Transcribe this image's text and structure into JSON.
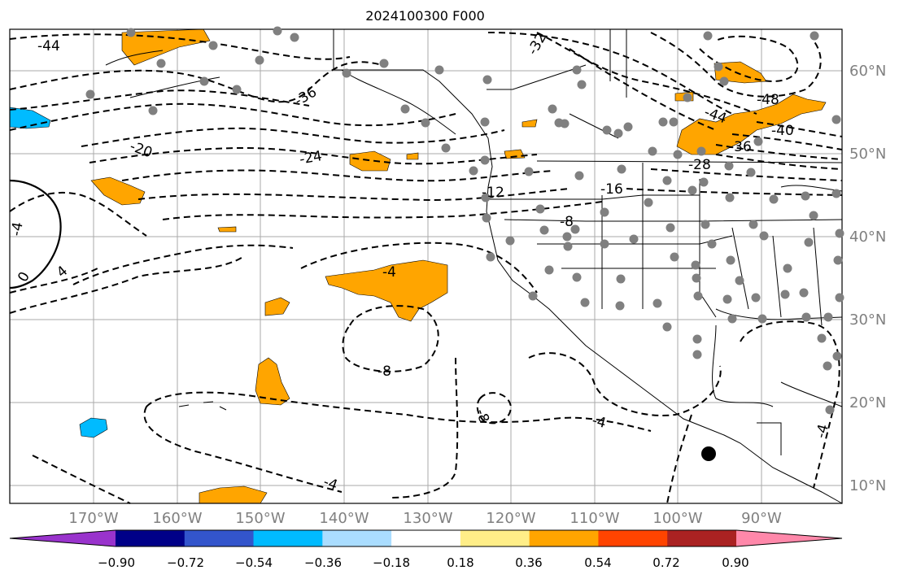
{
  "title": "2024100300 F000",
  "lon_labels": [
    "170°W",
    "160°W",
    "150°W",
    "140°W",
    "130°W",
    "120°W",
    "110°W",
    "100°W",
    "90°W"
  ],
  "lat_labels": [
    "60°N",
    "50°N",
    "40°N",
    "30°N",
    "20°N",
    "10°N"
  ],
  "contour_labels": [
    "-44",
    "-32",
    "-36",
    "-48",
    "-40",
    "-44",
    "-36",
    "-28",
    "-20",
    "-24",
    "-16",
    "-12",
    "-8",
    "0",
    "4",
    "-4",
    "-8",
    "-8",
    "-4",
    "-4",
    "-4",
    "-4"
  ],
  "colorbar": {
    "colors": [
      "#9933cc",
      "#000088",
      "#3355cc",
      "#00bbff",
      "#aaddff",
      "#ffffff",
      "#ffee88",
      "#ffa500",
      "#ff4400",
      "#aa2222",
      "#ff88aa"
    ],
    "ticks": [
      "−0.90",
      "−0.72",
      "−0.54",
      "−0.36",
      "−0.18",
      "0.18",
      "0.36",
      "0.54",
      "0.72",
      "0.90"
    ]
  },
  "colors": {
    "grid": "#aaaaaa",
    "positive_fill": "#ffa500",
    "negative_fill": "#00bbff",
    "station": "#808080",
    "axis_label": "#808080"
  }
}
